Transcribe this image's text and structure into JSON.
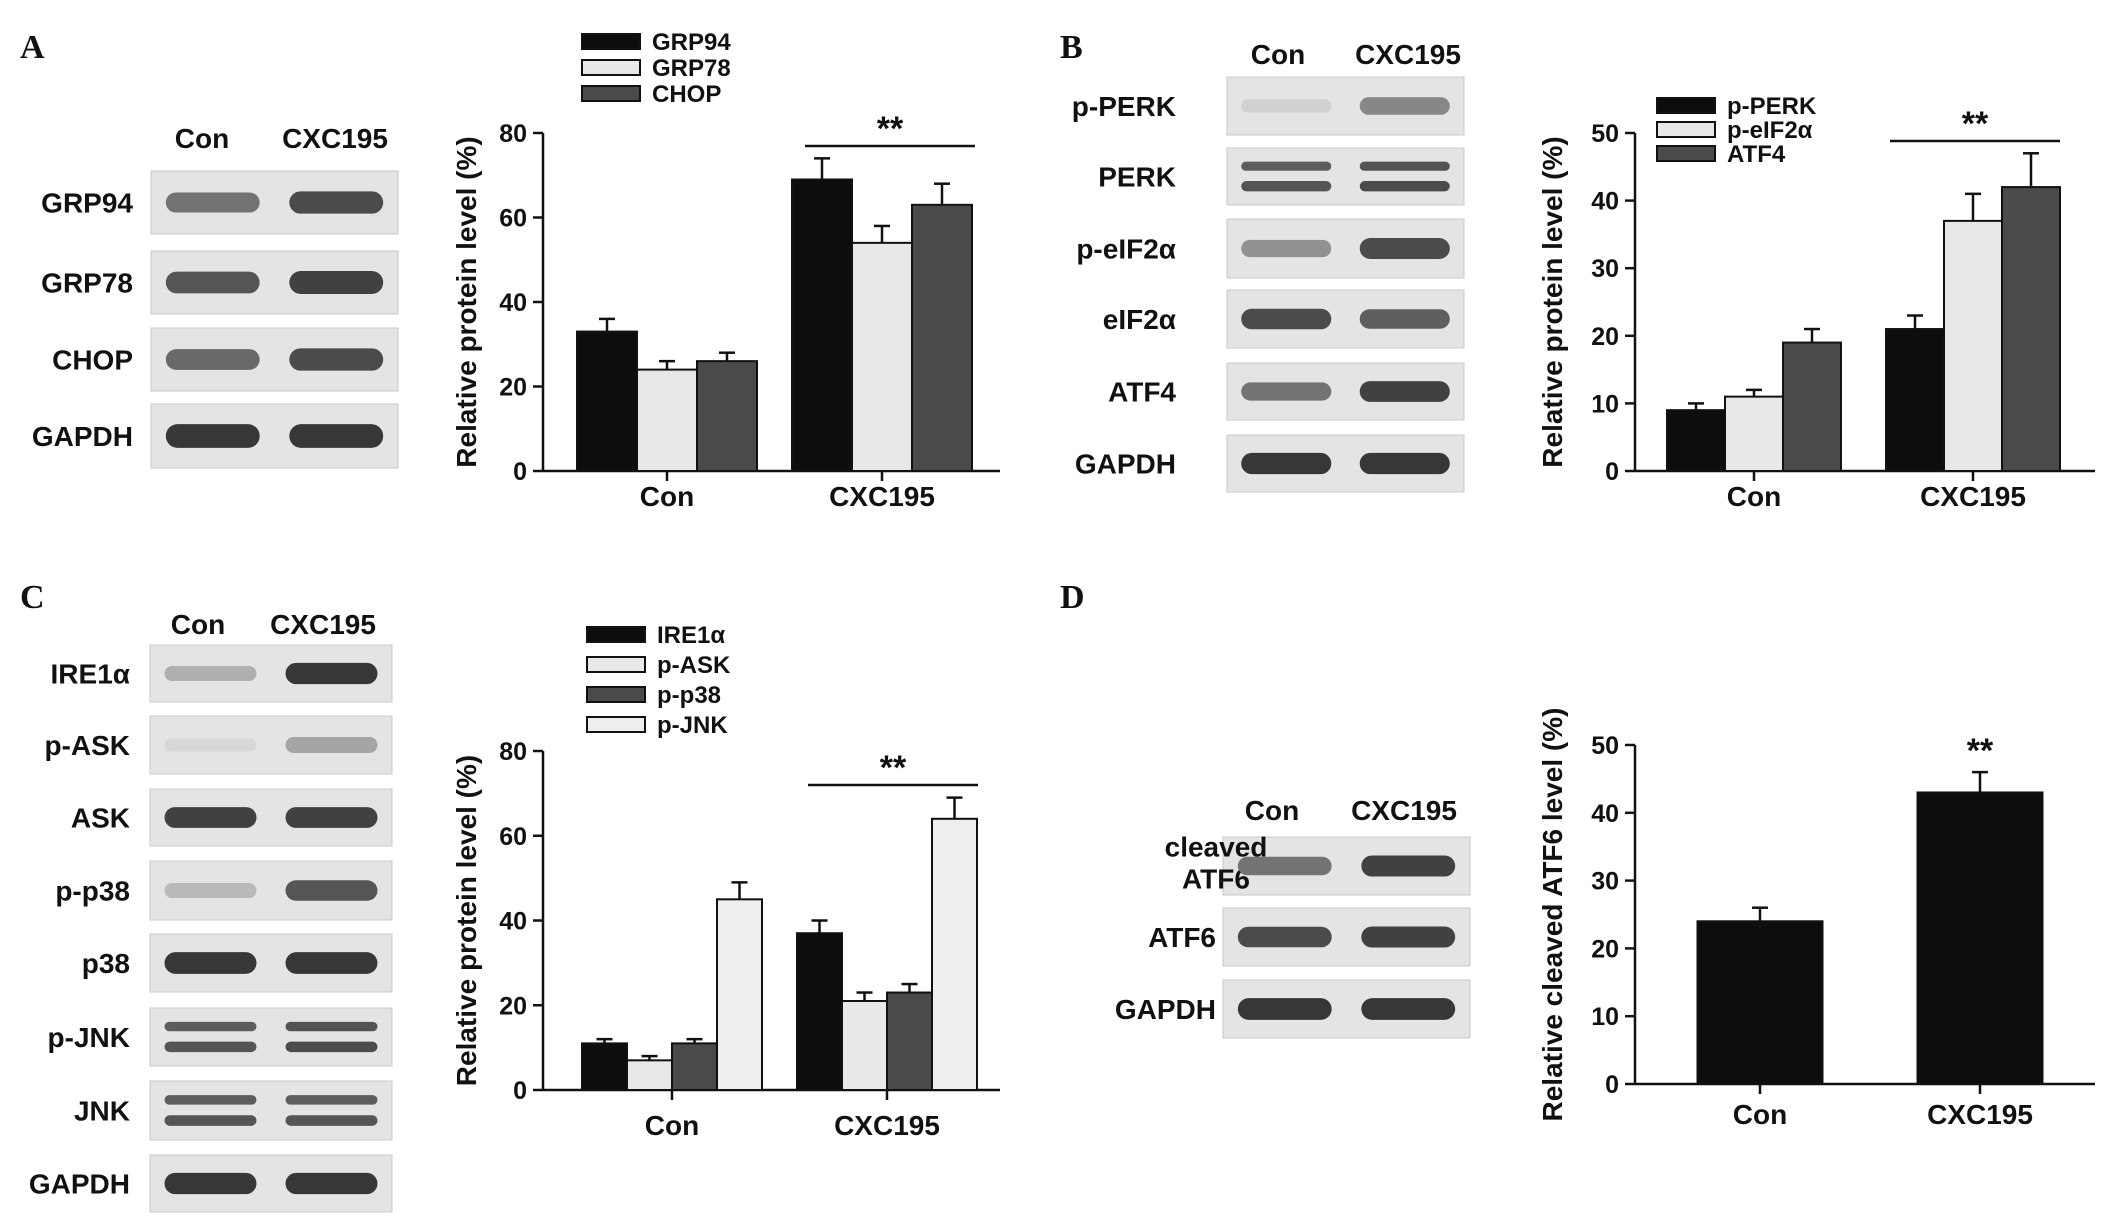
{
  "panels": [
    {
      "letter": "A",
      "blot": {
        "lanes": [
          "Con",
          "CXC195"
        ],
        "rows": [
          {
            "label": "GRP94",
            "band": "normal",
            "intensity": [
              0.55,
              0.75
            ]
          },
          {
            "label": "GRP78",
            "band": "normal",
            "intensity": [
              0.7,
              0.8
            ]
          },
          {
            "label": "CHOP",
            "band": "normal",
            "intensity": [
              0.6,
              0.75
            ]
          },
          {
            "label": "GAPDH",
            "band": "normal",
            "intensity": [
              0.85,
              0.85
            ]
          }
        ]
      }
    },
    {
      "letter": "B",
      "blot": {
        "lanes": [
          "Con",
          "CXC195"
        ],
        "rows": [
          {
            "label": "p-PERK",
            "band": "normal",
            "intensity": [
              0.08,
              0.45
            ]
          },
          {
            "label": "PERK",
            "band": "double",
            "intensity": [
              0.7,
              0.75
            ]
          },
          {
            "label": "p-eIF2α",
            "band": "normal",
            "intensity": [
              0.4,
              0.75
            ]
          },
          {
            "label": "eIF2α",
            "band": "normal",
            "intensity": [
              0.75,
              0.65
            ]
          },
          {
            "label": "ATF4",
            "band": "normal",
            "intensity": [
              0.55,
              0.8
            ]
          },
          {
            "label": "GAPDH",
            "band": "normal",
            "intensity": [
              0.85,
              0.85
            ]
          }
        ]
      }
    },
    {
      "letter": "C",
      "blot": {
        "lanes": [
          "Con",
          "CXC195"
        ],
        "rows": [
          {
            "label": "IRE1α",
            "band": "normal",
            "intensity": [
              0.25,
              0.85
            ]
          },
          {
            "label": "p-ASK",
            "band": "normal",
            "intensity": [
              0.05,
              0.3
            ]
          },
          {
            "label": "ASK",
            "band": "normal",
            "intensity": [
              0.8,
              0.8
            ]
          },
          {
            "label": "p-p38",
            "band": "normal",
            "intensity": [
              0.2,
              0.7
            ]
          },
          {
            "label": "p38",
            "band": "normal",
            "intensity": [
              0.85,
              0.85
            ]
          },
          {
            "label": "p-JNK",
            "band": "double",
            "intensity": [
              0.7,
              0.75
            ]
          },
          {
            "label": "JNK",
            "band": "double",
            "intensity": [
              0.7,
              0.7
            ]
          },
          {
            "label": "GAPDH",
            "band": "normal",
            "intensity": [
              0.85,
              0.85
            ]
          }
        ]
      }
    },
    {
      "letter": "D",
      "blot": {
        "lanes": [
          "Con",
          "CXC195"
        ],
        "rows": [
          {
            "label": "cleaved ATF6",
            "band": "normal",
            "intensity": [
              0.55,
              0.8
            ]
          },
          {
            "label": "ATF6",
            "band": "normal",
            "intensity": [
              0.75,
              0.8
            ]
          },
          {
            "label": "GAPDH",
            "band": "normal",
            "intensity": [
              0.85,
              0.85
            ]
          }
        ]
      }
    }
  ],
  "chart_data": [
    {
      "panel": "A",
      "type": "bar",
      "categories": [
        "Con",
        "CXC195"
      ],
      "ylabel": "Relative protein level (%)",
      "ylim": [
        0,
        80
      ],
      "yticks": [
        0,
        20,
        40,
        60,
        80
      ],
      "legend_position": "top",
      "series": [
        {
          "name": "GRP94",
          "color": "#0d0d0d",
          "values": [
            33,
            69
          ],
          "errors": [
            3,
            5
          ]
        },
        {
          "name": "GRP78",
          "color": "#e8e8e8",
          "values": [
            24,
            54
          ],
          "errors": [
            2,
            4
          ]
        },
        {
          "name": "CHOP",
          "color": "#4a4a4a",
          "values": [
            26,
            63
          ],
          "errors": [
            2,
            5
          ]
        }
      ],
      "significance": {
        "category": "CXC195",
        "label": "**",
        "style": "line"
      }
    },
    {
      "panel": "B",
      "type": "bar",
      "categories": [
        "Con",
        "CXC195"
      ],
      "ylabel": "Relative protein level (%)",
      "ylim": [
        0,
        50
      ],
      "yticks": [
        0,
        10,
        20,
        30,
        40,
        50
      ],
      "legend_position": "top-left",
      "series": [
        {
          "name": "p-PERK",
          "color": "#0d0d0d",
          "values": [
            9,
            21
          ],
          "errors": [
            1,
            2
          ]
        },
        {
          "name": "p-eIF2α",
          "color": "#e8e8e8",
          "values": [
            11,
            37
          ],
          "errors": [
            1,
            4
          ]
        },
        {
          "name": "ATF4",
          "color": "#4a4a4a",
          "values": [
            19,
            42
          ],
          "errors": [
            2,
            5
          ]
        }
      ],
      "significance": {
        "category": "CXC195",
        "label": "**",
        "style": "line"
      }
    },
    {
      "panel": "C",
      "type": "bar",
      "categories": [
        "Con",
        "CXC195"
      ],
      "ylabel": "Relative protein level (%)",
      "ylim": [
        0,
        80
      ],
      "yticks": [
        0,
        20,
        40,
        60,
        80
      ],
      "legend_position": "top",
      "series": [
        {
          "name": "IRE1α",
          "color": "#0d0d0d",
          "values": [
            11,
            37
          ],
          "errors": [
            1,
            3
          ]
        },
        {
          "name": "p-ASK",
          "color": "#e8e8e8",
          "values": [
            7,
            21
          ],
          "errors": [
            1,
            2
          ]
        },
        {
          "name": "p-p38",
          "color": "#4a4a4a",
          "values": [
            11,
            23
          ],
          "errors": [
            1,
            2
          ]
        },
        {
          "name": "p-JNK",
          "color": "#eeeeee",
          "values": [
            45,
            64
          ],
          "errors": [
            4,
            5
          ]
        }
      ],
      "significance": {
        "category": "CXC195",
        "label": "**",
        "style": "line"
      }
    },
    {
      "panel": "D",
      "type": "bar",
      "categories": [
        "Con",
        "CXC195"
      ],
      "ylabel": "Relative cleaved ATF6 level (%)",
      "ylim": [
        0,
        50
      ],
      "yticks": [
        0,
        10,
        20,
        30,
        40,
        50
      ],
      "series": [
        {
          "color": "#0d0d0d",
          "values": [
            24,
            43
          ],
          "errors": [
            2,
            3
          ]
        }
      ],
      "significance": {
        "category": "CXC195",
        "label": "**",
        "style": "above-bar"
      }
    }
  ]
}
